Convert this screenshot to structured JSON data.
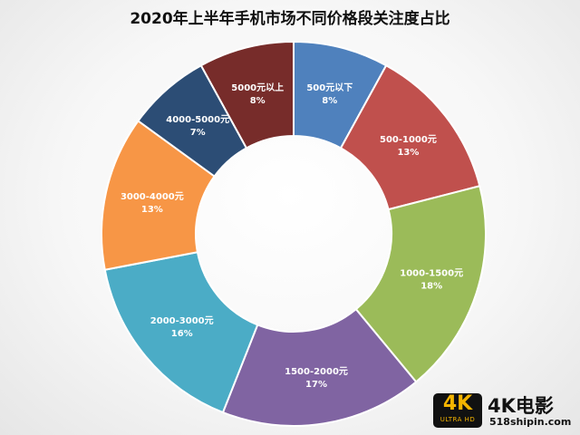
{
  "chart_data": {
    "type": "pie",
    "title": "2020年上半年手机市场不同价格段关注度占比",
    "donut": true,
    "slices": [
      {
        "label": "500元以下",
        "value": 8,
        "value_label": "8%",
        "color": "#4F81BD"
      },
      {
        "label": "500-1000元",
        "value": 13,
        "value_label": "13%",
        "color": "#C0504D"
      },
      {
        "label": "1000-1500元",
        "value": 18,
        "value_label": "18%",
        "color": "#9BBB59"
      },
      {
        "label": "1500-2000元",
        "value": 17,
        "value_label": "17%",
        "color": "#8064A2"
      },
      {
        "label": "2000-3000元",
        "value": 16,
        "value_label": "16%",
        "color": "#4BACC6"
      },
      {
        "label": "3000-4000元",
        "value": 13,
        "value_label": "13%",
        "color": "#F79646"
      },
      {
        "label": "4000-5000元",
        "value": 7,
        "value_label": "7%",
        "color": "#2C4D75"
      },
      {
        "label": "5000元以上",
        "value": 8,
        "value_label": "8%",
        "color": "#772C2A"
      }
    ]
  },
  "watermark": {
    "badge_big": "4K",
    "badge_small": "ULTRA HD",
    "brand": "4K电影",
    "site": "518shipin.com"
  }
}
